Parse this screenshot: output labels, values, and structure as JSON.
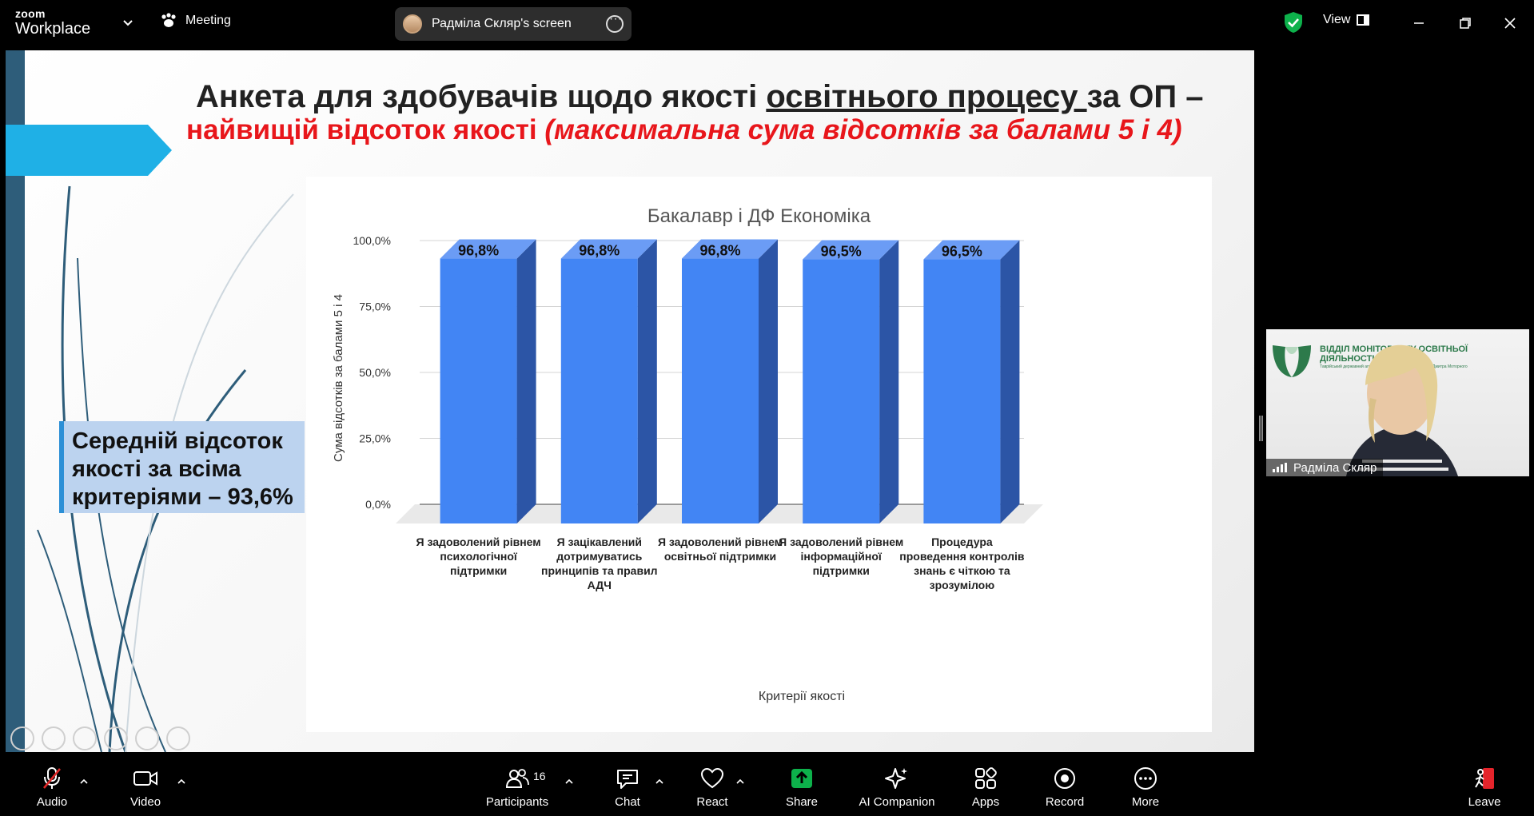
{
  "app": {
    "brand_top": "zoom",
    "brand_bottom": "Workplace",
    "meeting_label": "Meeting",
    "share_pill_label": "Радміла Скляр's screen",
    "view_label": "View"
  },
  "slide": {
    "title_part1": "Анкета для здобувачів щодо якості ",
    "title_underlined": "освітнього процесу ",
    "title_part2": "за ОП –",
    "subtitle_plain": "найвищій відсоток якості ",
    "subtitle_italic": "(максимальна сума відсотків за балами 5 і 4)",
    "average_box": "Середній відсоток якості за всіма критеріями – 93,6%"
  },
  "chart_data": {
    "type": "bar",
    "title": "Бакалавр і ДФ Економіка",
    "xlabel": "Критерії якості",
    "ylabel": "Сума відсотків за балами 5 і 4",
    "ylim": [
      0,
      100
    ],
    "yticks": [
      "0,0%",
      "25,0%",
      "50,0%",
      "75,0%",
      "100,0%"
    ],
    "categories": [
      [
        "Я задоволений рівнем",
        "психологічної",
        "підтримки"
      ],
      [
        "Я зацікавлений",
        "дотримуватись",
        "принципів та правил",
        "АДЧ"
      ],
      [
        "Я задоволений рівнем",
        "освітньої підтримки"
      ],
      [
        "Я задоволений рівнем",
        "інформаційної",
        "підтримки"
      ],
      [
        "Процедура",
        "проведення контролів",
        "знань є чіткою та",
        "зрозумілою"
      ]
    ],
    "values": [
      96.8,
      96.8,
      96.8,
      96.5,
      96.5
    ],
    "value_labels": [
      "96,8%",
      "96,8%",
      "96,8%",
      "96,5%",
      "96,5%"
    ],
    "grid": true,
    "style": "3d",
    "colors": {
      "front": "#4285f4",
      "side": "#2c55a6",
      "top": "#6b9cf5"
    }
  },
  "self_video": {
    "name": "Радміла Скляр",
    "banner_line1": "ВІДДІЛ МОНІТОРИНГУ ОСВІТНЬОЇ ДІЯЛЬНОСТІ",
    "banner_line2": "Таврійський державний агротехнологічний університет імені Дмитра Моторного"
  },
  "toolbar": {
    "audio": "Audio",
    "video": "Video",
    "participants": "Participants",
    "participants_count": "16",
    "chat": "Chat",
    "react": "React",
    "share": "Share",
    "ai": "AI Companion",
    "apps": "Apps",
    "record": "Record",
    "more": "More",
    "leave": "Leave"
  },
  "colors": {
    "accent_green": "#0db14b",
    "leave_red": "#e5242b",
    "mute_red": "#e02828"
  }
}
